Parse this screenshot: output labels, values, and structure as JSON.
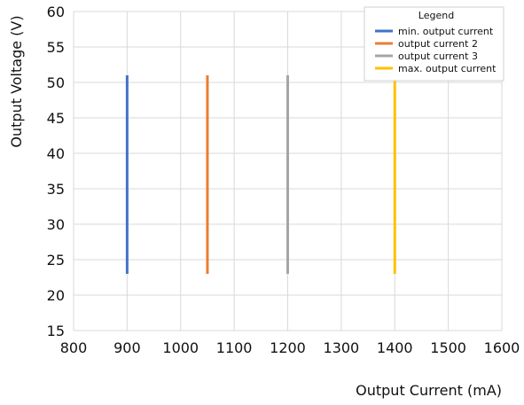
{
  "chart_data": {
    "type": "line",
    "title": "",
    "xlabel": "Output Current (mA)",
    "ylabel": "Output Voltage (V)",
    "xlim": [
      800,
      1600
    ],
    "ylim": [
      15,
      60
    ],
    "xticks": [
      800,
      900,
      1000,
      1100,
      1200,
      1300,
      1400,
      1500,
      1600
    ],
    "yticks": [
      15,
      20,
      25,
      30,
      35,
      40,
      45,
      50,
      55,
      60
    ],
    "grid": true,
    "legend": {
      "title": "Legend",
      "placement": "top-right"
    },
    "series": [
      {
        "name": "min. output current",
        "color": "#4472C4",
        "x": [
          900,
          900
        ],
        "y": [
          23,
          51
        ]
      },
      {
        "name": "output current 2",
        "color": "#ED7D31",
        "x": [
          1050,
          1050
        ],
        "y": [
          23,
          51
        ]
      },
      {
        "name": "output current 3",
        "color": "#A5A5A5",
        "x": [
          1200,
          1200
        ],
        "y": [
          23,
          51
        ]
      },
      {
        "name": "max. output current",
        "color": "#FFC000",
        "x": [
          1400,
          1400
        ],
        "y": [
          23,
          51
        ]
      }
    ]
  }
}
